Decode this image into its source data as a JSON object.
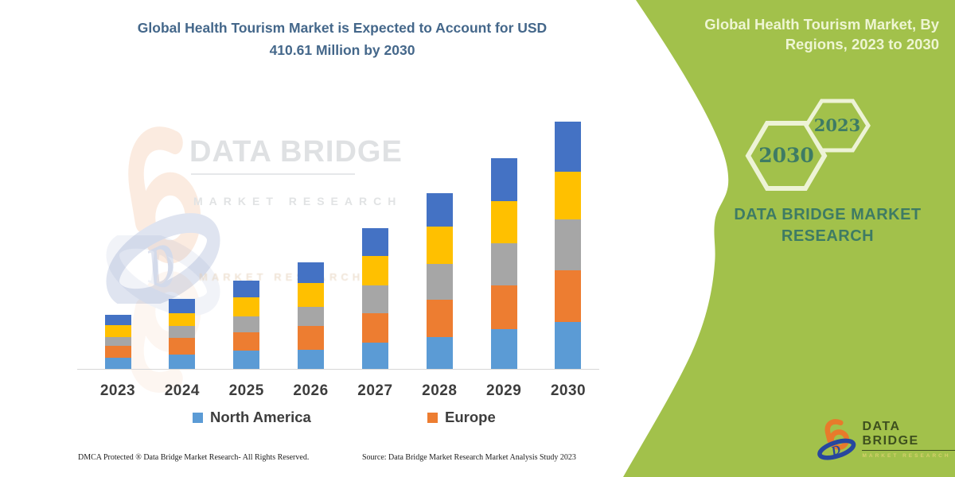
{
  "title": {
    "line1": "Global Health Tourism Market is Expected to Account for USD",
    "line2": "410.61 Million by 2030"
  },
  "watermark": {
    "line1": "DATA BRIDGE",
    "line2": "MARKET RESEARCH"
  },
  "legend": [
    {
      "label": "North America",
      "color": "#5B9BD5"
    },
    {
      "label": "Europe",
      "color": "#ED7D31"
    }
  ],
  "footer": {
    "left": "DMCA Protected ® Data Bridge Market Research-  All Rights Reserved.",
    "right": "Source: Data Bridge Market Research  Market Analysis Study 2023"
  },
  "panel": {
    "color": "#a2c14b",
    "hex_stroke": "#edf3d6",
    "text_color": "#3e7b64",
    "heading_line1": "Global Health Tourism Market, By",
    "heading_line2": "Regions, 2023 to 2030",
    "hexagons": [
      {
        "label": "2030"
      },
      {
        "label": "2023"
      }
    ],
    "brand_line1": "DATA BRIDGE MARKET",
    "brand_line2": "RESEARCH"
  },
  "logo": {
    "name": "DATA BRIDGE",
    "subtitle": "MARKET RESEARCH"
  },
  "chart_data": {
    "type": "bar",
    "stacked": true,
    "title": "Global Health Tourism Market is Expected to Account for USD 410.61 Million by 2030",
    "categories": [
      "2023",
      "2024",
      "2025",
      "2026",
      "2027",
      "2028",
      "2029",
      "2030"
    ],
    "series": [
      {
        "name": "North America",
        "color": "#5B9BD5",
        "values": [
          18.5,
          23.8,
          30.4,
          31.7,
          43.6,
          52.8,
          66.0,
          77.9
        ]
      },
      {
        "name": "Europe",
        "color": "#ED7D31",
        "values": [
          19.8,
          27.7,
          30.4,
          39.6,
          48.8,
          62.0,
          72.6,
          85.8
        ]
      },
      {
        "name": "unlabeled-gray-region",
        "color": "#A6A6A6",
        "values": [
          14.5,
          19.8,
          26.4,
          31.7,
          46.2,
          59.4,
          70.0,
          84.5
        ]
      },
      {
        "name": "unlabeled-yellow-region",
        "color": "#FFC000",
        "values": [
          19.8,
          21.1,
          31.7,
          39.6,
          48.8,
          62.0,
          70.0,
          79.2
        ]
      },
      {
        "name": "unlabeled-darkblue-region",
        "color": "#4472C4",
        "values": [
          17.2,
          23.8,
          27.7,
          34.3,
          46.2,
          55.4,
          71.3,
          83.2
        ]
      }
    ],
    "totals": [
      89.8,
      116.2,
      146.6,
      176.9,
      233.6,
      291.6,
      349.9,
      410.6
    ],
    "xlabel": "",
    "ylabel": "",
    "ylim": [
      0,
      420
    ],
    "grid": false,
    "y_axis_shown": false,
    "legend_position": "bottom",
    "legend_visible_entries": [
      "North America",
      "Europe"
    ],
    "note": "Stacked column chart, units USD Million (estimated from bar heights; 2030 total stated as 410.61)"
  }
}
